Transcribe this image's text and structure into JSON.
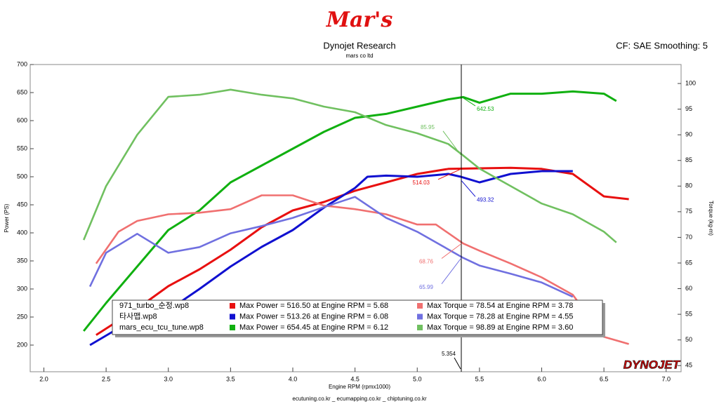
{
  "header": {
    "logo": "Mar's",
    "title": "Dynojet Research",
    "subtitle": "mars co ltd",
    "settings": "CF: SAE Smoothing: 5",
    "footer": "ecutuning.co.kr _ ecumapping.co.kr _ chiptuning.co.kr",
    "brand": "DYNOJET"
  },
  "chart_data": {
    "type": "line",
    "xlabel": "Engine RPM (rpmx1000)",
    "ylabel": "Power (PS)",
    "y2label": "Torque (kg-m)",
    "xlim": [
      1.89,
      7.12
    ],
    "ylim": [
      152.5,
      700
    ],
    "y2lim": [
      43.8,
      103.7
    ],
    "xticks": [
      {
        "value": 2,
        "label": "2.0"
      },
      2.5,
      {
        "value": 3,
        "label": "3.0"
      },
      3.5,
      {
        "value": 4,
        "label": "4.0"
      },
      4.5,
      {
        "value": 5,
        "label": "5.0"
      },
      5.5,
      {
        "value": 6,
        "label": "6.0"
      },
      6.5,
      {
        "value": 7,
        "label": "7.0"
      }
    ],
    "yticks": [
      200,
      250,
      300,
      350,
      400,
      450,
      500,
      550,
      600,
      650,
      700
    ],
    "y2ticks": [
      45,
      50,
      55,
      60,
      65,
      70,
      75,
      80,
      85,
      90,
      95,
      100
    ],
    "grid": false,
    "cursor": {
      "value": 5.354,
      "label": "5.354"
    },
    "files": [
      "971_turbo_순정.wp8",
      "타사맵.wp8",
      "mars_ecu_tcu_tune.wp8"
    ],
    "series": [
      {
        "name": "Max Power = 516.50 at Engine RPM = 5.68",
        "color": "#e81010",
        "axis": "y",
        "cursor_value": 514.03,
        "x": [
          2.42,
          2.75,
          3.0,
          3.25,
          3.5,
          3.75,
          4.0,
          4.25,
          4.5,
          4.75,
          5.0,
          5.25,
          5.5,
          5.75,
          6.0,
          6.25,
          6.5,
          6.7
        ],
        "values": [
          218,
          265,
          305,
          335,
          370,
          410,
          440,
          455,
          475,
          490,
          505,
          514,
          515,
          516,
          514,
          505,
          465,
          460
        ]
      },
      {
        "name": "Max Power = 513.26 at Engine RPM = 6.08",
        "color": "#1010d0",
        "axis": "y",
        "cursor_value": 493.32,
        "x": [
          2.37,
          2.6,
          2.75,
          3.0,
          3.25,
          3.5,
          3.75,
          4.0,
          4.25,
          4.5,
          4.6,
          4.75,
          5.0,
          5.25,
          5.35,
          5.5,
          5.75,
          6.0,
          6.25
        ],
        "values": [
          200,
          230,
          245,
          262,
          300,
          340,
          375,
          405,
          445,
          480,
          500,
          502,
          500,
          505,
          500,
          490,
          505,
          510,
          510
        ]
      },
      {
        "name": "Max Power = 654.45 at Engine RPM = 6.12",
        "color": "#10b010",
        "axis": "y",
        "cursor_value": 642.53,
        "x": [
          2.32,
          2.5,
          2.75,
          3.0,
          3.25,
          3.5,
          3.75,
          4.0,
          4.25,
          4.5,
          4.75,
          5.0,
          5.25,
          5.37,
          5.5,
          5.75,
          6.0,
          6.25,
          6.5,
          6.6
        ],
        "values": [
          225,
          275,
          340,
          405,
          440,
          490,
          520,
          550,
          580,
          605,
          612,
          625,
          638,
          642,
          632,
          648,
          648,
          652,
          648,
          635
        ]
      },
      {
        "name": "Max Torque = 78.54 at Engine RPM = 3.78",
        "color": "#f07070",
        "axis": "y2",
        "cursor_value": 68.76,
        "x": [
          2.42,
          2.6,
          2.75,
          3.0,
          3.25,
          3.5,
          3.75,
          4.0,
          4.25,
          4.5,
          4.75,
          5.0,
          5.15,
          5.37,
          5.5,
          5.75,
          6.0,
          6.25,
          6.5,
          6.7
        ],
        "values": [
          64.9,
          71.1,
          73.2,
          74.5,
          74.8,
          75.5,
          78.2,
          78.2,
          76.2,
          75.5,
          74.5,
          72.5,
          72.5,
          68.8,
          67.4,
          64.9,
          62.2,
          58.8,
          50.6,
          49.2
        ]
      },
      {
        "name": "Max Torque = 78.28 at Engine RPM = 4.55",
        "color": "#7070e0",
        "axis": "y2",
        "cursor_value": 65.99,
        "x": [
          2.37,
          2.5,
          2.75,
          3.0,
          3.25,
          3.5,
          3.75,
          4.0,
          4.25,
          4.5,
          4.75,
          5.0,
          5.37,
          5.5,
          5.75,
          6.0,
          6.25
        ],
        "values": [
          60.4,
          67,
          70.7,
          67,
          68.1,
          70.8,
          72.2,
          73.8,
          75.9,
          77.9,
          73.8,
          71.1,
          66,
          64.5,
          62.9,
          61.2,
          58.4
        ]
      },
      {
        "name": "Max Torque = 98.89 at Engine RPM = 3.60",
        "color": "#70c060",
        "axis": "y2",
        "cursor_value": 85.95,
        "x": [
          2.32,
          2.5,
          2.75,
          3.0,
          3.25,
          3.5,
          3.75,
          4.0,
          4.25,
          4.5,
          4.75,
          5.0,
          5.25,
          5.37,
          5.5,
          5.75,
          6.0,
          6.25,
          6.5,
          6.6
        ],
        "values": [
          69.5,
          80,
          90,
          97.4,
          97.8,
          98.8,
          97.8,
          97.1,
          95.5,
          94.4,
          91.9,
          90.3,
          88.2,
          85.95,
          83.4,
          80,
          76.6,
          74.5,
          71.1,
          69
        ]
      }
    ]
  }
}
